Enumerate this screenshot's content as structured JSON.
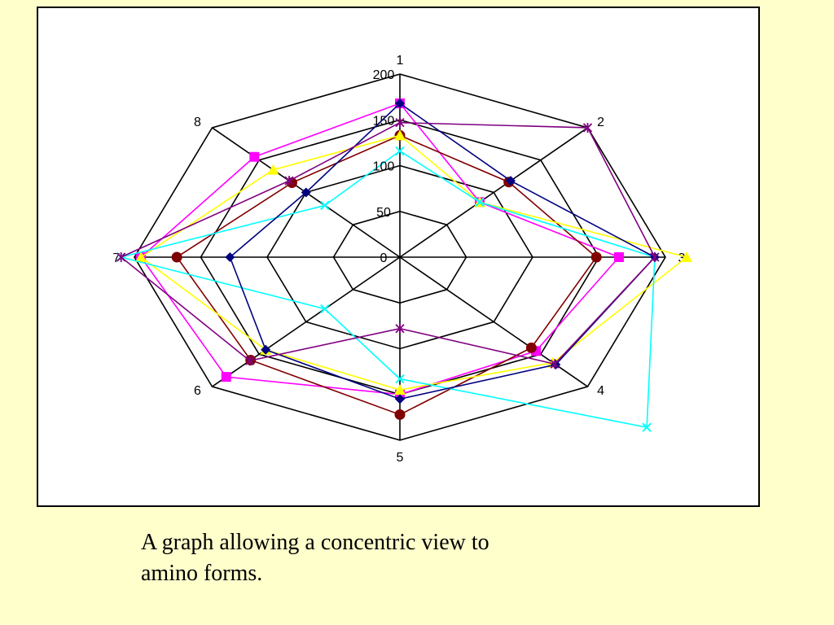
{
  "chart_data": {
    "type": "radar",
    "title": "",
    "categories": [
      "1",
      "2",
      "3",
      "4",
      "5",
      "6",
      "7",
      "8"
    ],
    "rmax": 200,
    "ticks": [
      0,
      50,
      100,
      150,
      200
    ],
    "tick_labels": [
      "0",
      "50",
      "100",
      "150",
      "200"
    ],
    "grid": true,
    "legend": "none",
    "series": [
      {
        "color": "#ff00ff",
        "marker": "square",
        "values": [
          168,
          85,
          165,
          145,
          150,
          185,
          195,
          155
        ]
      },
      {
        "color": "#800000",
        "marker": "circle",
        "values": [
          133,
          116,
          148,
          140,
          172,
          159,
          168,
          115
        ]
      },
      {
        "color": "#ffff00",
        "marker": "triangle",
        "values": [
          133,
          85,
          216,
          163,
          145,
          143,
          195,
          135
        ]
      },
      {
        "color": "#00ffff",
        "marker": "x",
        "values": [
          116,
          85,
          192,
          263,
          133,
          80,
          210,
          80
        ]
      },
      {
        "color": "#000080",
        "marker": "diamond",
        "values": [
          168,
          118,
          192,
          166,
          155,
          143,
          128,
          100
        ]
      },
      {
        "color": "#800080",
        "marker": "star",
        "values": [
          147,
          200,
          192,
          165,
          78,
          160,
          210,
          118
        ]
      }
    ]
  },
  "caption": {
    "line1": "A graph allowing a concentric view to",
    "line2": "amino forms."
  }
}
